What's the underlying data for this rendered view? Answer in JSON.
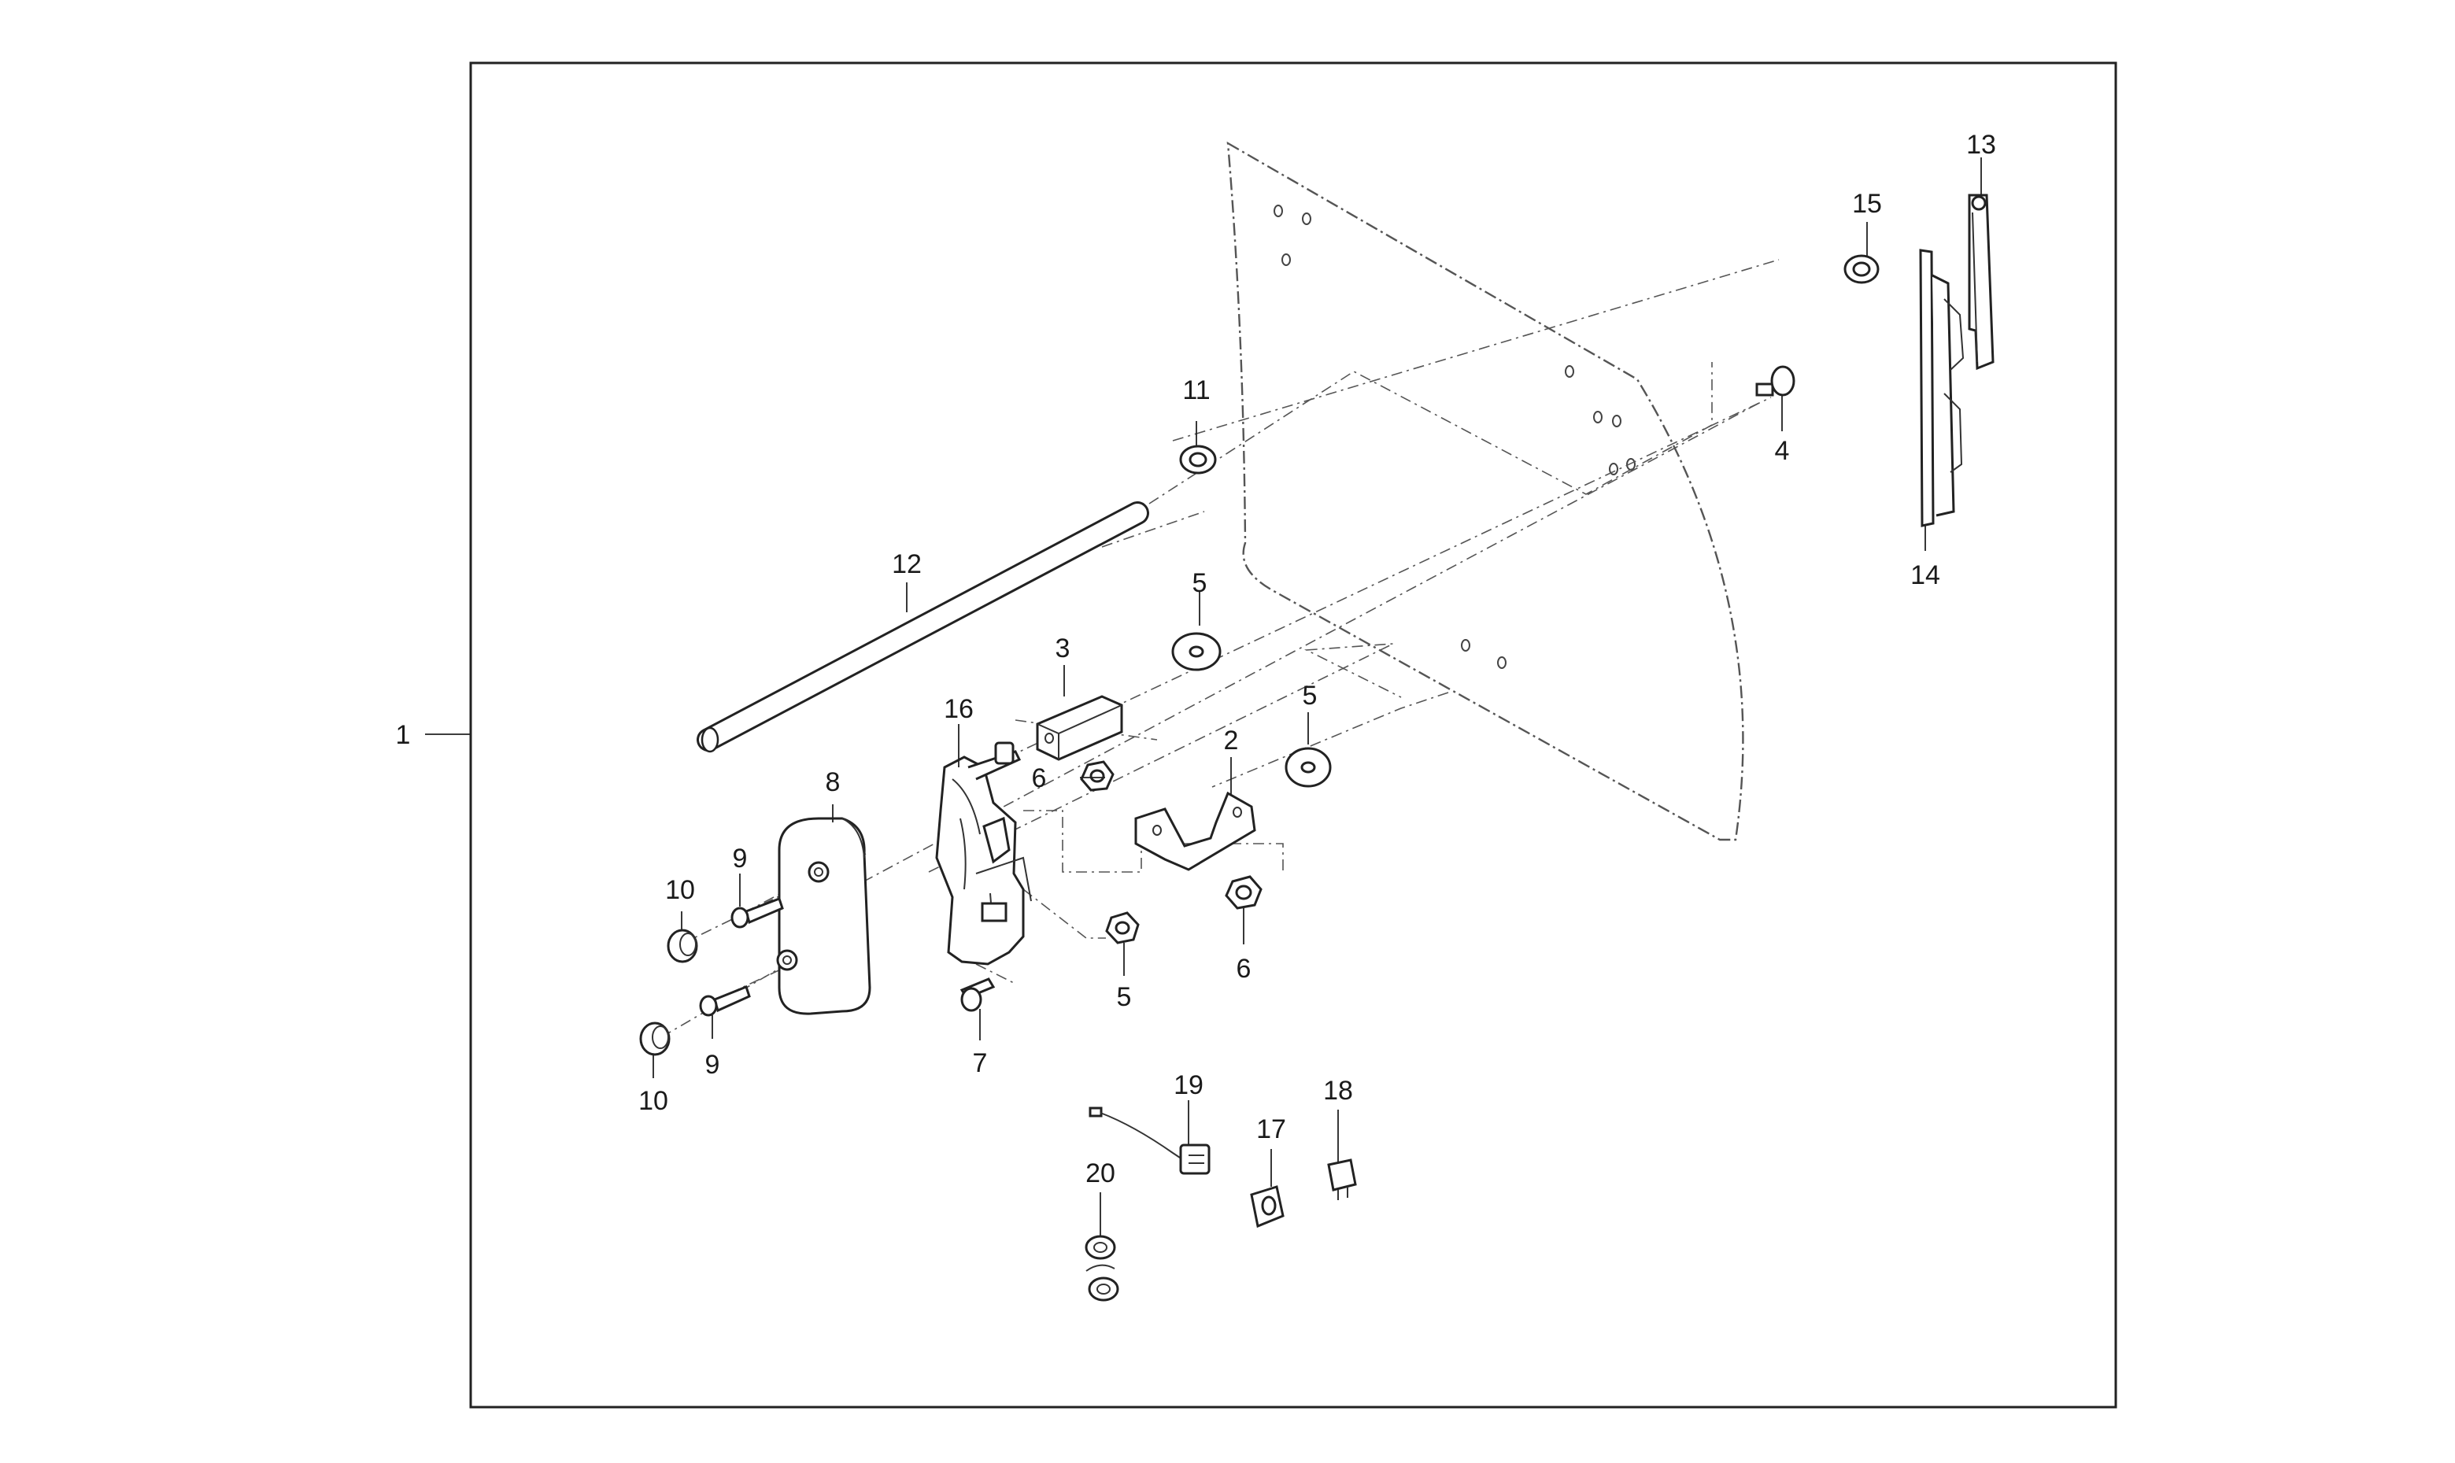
{
  "diagram": {
    "callouts": {
      "c1": "1",
      "c2": "2",
      "c3": "3",
      "c4": "4",
      "c5a": "5",
      "c5b": "5",
      "c5c": "5",
      "c6a": "6",
      "c6b": "6",
      "c7": "7",
      "c8": "8",
      "c9a": "9",
      "c9b": "9",
      "c10a": "10",
      "c10b": "10",
      "c11": "11",
      "c12": "12",
      "c13": "13",
      "c14": "14",
      "c15": "15",
      "c16": "16",
      "c17": "17",
      "c18": "18",
      "c19": "19",
      "c20": "20"
    }
  }
}
